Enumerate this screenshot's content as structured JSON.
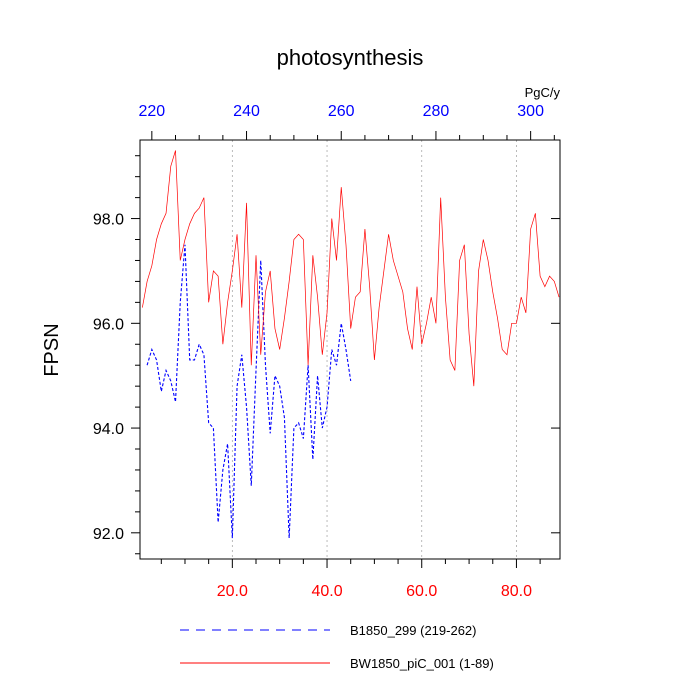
{
  "chart_data": {
    "type": "line",
    "title": "photosynthesis",
    "ylabel": "FPSN",
    "top_axis_unit": "PgC/y",
    "ylim": [
      91.5,
      99.5
    ],
    "y_ticks": [
      92.0,
      94.0,
      96.0,
      98.0
    ],
    "y_tick_labels": [
      "92.0",
      "94.0",
      "96.0",
      "98.0"
    ],
    "bottom_axis": {
      "color": "#ff0000",
      "range": [
        0.5,
        89.2
      ],
      "ticks": [
        20,
        40,
        60,
        80
      ],
      "tick_labels": [
        "20.0",
        "40.0",
        "60.0",
        "80.0"
      ]
    },
    "top_axis": {
      "color": "#0000ff",
      "range": [
        217.5,
        306.2
      ],
      "ticks": [
        220,
        240,
        260,
        280,
        300
      ],
      "tick_labels": [
        "220",
        "240",
        "260",
        "280",
        "300"
      ]
    },
    "grid": "vertical-dotted",
    "series": [
      {
        "name": "B1850_299 (219-262)",
        "axis": "top",
        "color": "#0000ff",
        "style": "dashed",
        "x": [
          219,
          220,
          221,
          222,
          223,
          224,
          225,
          226,
          227,
          228,
          229,
          230,
          231,
          232,
          233,
          234,
          235,
          236,
          237,
          238,
          239,
          240,
          241,
          242,
          243,
          244,
          245,
          246,
          247,
          248,
          249,
          250,
          251,
          252,
          253,
          254,
          255,
          256,
          257,
          258,
          259,
          260,
          261,
          262
        ],
        "values": [
          95.2,
          95.5,
          95.3,
          94.7,
          95.1,
          94.9,
          94.5,
          96.4,
          97.5,
          95.3,
          95.3,
          95.6,
          95.4,
          94.1,
          94.0,
          92.2,
          93.2,
          93.7,
          91.9,
          94.8,
          95.4,
          94.4,
          92.9,
          95.1,
          97.2,
          95.2,
          93.9,
          95.0,
          94.8,
          94.2,
          91.9,
          94.0,
          94.1,
          93.8,
          95.2,
          93.4,
          95.0,
          94.0,
          94.4,
          95.5,
          95.2,
          96.0,
          95.5,
          94.9
        ]
      },
      {
        "name": "BW1850_piC_001 (1-89)",
        "axis": "bottom",
        "color": "#ff0000",
        "style": "solid",
        "x": [
          1,
          2,
          3,
          4,
          5,
          6,
          7,
          8,
          9,
          10,
          11,
          12,
          13,
          14,
          15,
          16,
          17,
          18,
          19,
          20,
          21,
          22,
          23,
          24,
          25,
          26,
          27,
          28,
          29,
          30,
          31,
          32,
          33,
          34,
          35,
          36,
          37,
          38,
          39,
          40,
          41,
          42,
          43,
          44,
          45,
          46,
          47,
          48,
          49,
          50,
          51,
          52,
          53,
          54,
          55,
          56,
          57,
          58,
          59,
          60,
          61,
          62,
          63,
          64,
          65,
          66,
          67,
          68,
          69,
          70,
          71,
          72,
          73,
          74,
          75,
          76,
          77,
          78,
          79,
          80,
          81,
          82,
          83,
          84,
          85,
          86,
          87,
          88,
          89
        ],
        "values": [
          96.3,
          96.8,
          97.1,
          97.6,
          97.9,
          98.1,
          99.0,
          99.3,
          97.2,
          97.6,
          97.9,
          98.1,
          98.2,
          98.4,
          96.4,
          97.0,
          96.9,
          95.6,
          96.4,
          97.0,
          97.7,
          96.3,
          98.3,
          95.2,
          97.3,
          95.4,
          96.6,
          97.0,
          95.9,
          95.5,
          96.1,
          96.8,
          97.6,
          97.7,
          97.6,
          95.2,
          97.3,
          96.5,
          95.4,
          96.2,
          98.0,
          97.2,
          98.6,
          97.5,
          95.9,
          96.5,
          96.6,
          97.8,
          96.7,
          95.3,
          96.3,
          97.0,
          97.7,
          97.2,
          96.9,
          96.6,
          95.9,
          95.5,
          96.7,
          95.6,
          96.0,
          96.5,
          96.0,
          98.4,
          96.5,
          95.3,
          95.1,
          97.2,
          97.5,
          95.8,
          94.8,
          97.0,
          97.6,
          97.2,
          96.6,
          96.1,
          95.5,
          95.4,
          96.0,
          96.0,
          96.5,
          96.2,
          97.8,
          98.1,
          96.9,
          96.7,
          96.9,
          96.8,
          96.5
        ]
      }
    ],
    "legend": {
      "position": "bottom",
      "entries": [
        "B1850_299 (219-262)",
        "BW1850_piC_001 (1-89)"
      ]
    }
  }
}
